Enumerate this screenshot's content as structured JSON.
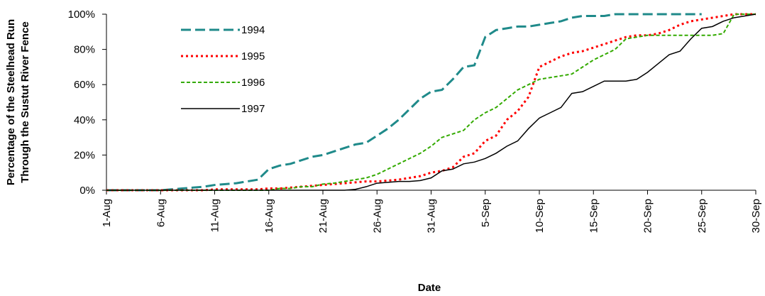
{
  "chart_data": {
    "type": "line",
    "x_label": "Date",
    "y_label": [
      "Percentage of the Steelhead Run",
      "Through the Sustut River Fence"
    ],
    "categories": [
      "1-Aug",
      null,
      null,
      null,
      null,
      "6-Aug",
      null,
      null,
      null,
      null,
      "11-Aug",
      null,
      null,
      null,
      null,
      "16-Aug",
      null,
      null,
      null,
      null,
      "21-Aug",
      null,
      null,
      null,
      null,
      "26-Aug",
      null,
      null,
      null,
      null,
      "31-Aug",
      null,
      null,
      null,
      null,
      "5-Sep",
      null,
      null,
      null,
      null,
      "10-Sep",
      null,
      null,
      null,
      null,
      "15-Sep",
      null,
      null,
      null,
      null,
      "20-Sep",
      null,
      null,
      null,
      null,
      "25-Sep",
      null,
      null,
      null,
      null,
      "30-Sep"
    ],
    "ylim": [
      0,
      100
    ],
    "yticks": [
      {
        "value": 0,
        "label": "0%"
      },
      {
        "value": 20,
        "label": "20%"
      },
      {
        "value": 40,
        "label": "40%"
      },
      {
        "value": 60,
        "label": "60%"
      },
      {
        "value": 80,
        "label": "80%"
      },
      {
        "value": 100,
        "label": "100%"
      }
    ],
    "legend": "upper-left",
    "series": [
      {
        "name": "1994",
        "color": "#1f8a8a",
        "line_style": "long-dash",
        "values": [
          0,
          0,
          0,
          0,
          0,
          0,
          0.5,
          1,
          1.5,
          2,
          3,
          3.5,
          4,
          5,
          6,
          12,
          14,
          15,
          17,
          19,
          20,
          22,
          24,
          26,
          27,
          31,
          35,
          40,
          46,
          52,
          56,
          57,
          63,
          70,
          71,
          87,
          91,
          92,
          93,
          93,
          94,
          95,
          96,
          98,
          99,
          99,
          99,
          100,
          100,
          100,
          100,
          100,
          100,
          100,
          100,
          100,
          null,
          null,
          null,
          null,
          null
        ]
      },
      {
        "name": "1995",
        "color": "#ff0000",
        "line_style": "dotted",
        "values": [
          0,
          0,
          0,
          0,
          0,
          0,
          0,
          0,
          0,
          0,
          0.5,
          0.5,
          0.5,
          0.5,
          0.5,
          1,
          1,
          1.5,
          2,
          2.5,
          3,
          3.5,
          4,
          4.5,
          5,
          5,
          5.5,
          6,
          7,
          8,
          10,
          11,
          13,
          19,
          21,
          28,
          31,
          40,
          45,
          53,
          70,
          73,
          76,
          78,
          79,
          81,
          83,
          85,
          87,
          88,
          88,
          89,
          91,
          94,
          96,
          97,
          98,
          99,
          100,
          100,
          100
        ]
      },
      {
        "name": "1996",
        "color": "#33aa00",
        "line_style": "dash",
        "values": [
          0,
          0,
          0,
          0,
          0,
          0,
          0,
          0,
          0,
          0,
          0,
          0,
          0,
          0,
          0,
          0,
          1,
          1,
          2,
          2,
          3.5,
          4,
          5,
          6,
          7,
          9,
          12,
          15,
          18,
          21,
          25,
          30,
          32,
          34,
          40,
          44,
          47,
          52,
          57,
          60,
          63,
          64,
          65,
          66,
          70,
          74,
          77,
          80,
          86,
          87,
          88,
          88,
          88,
          88,
          88,
          88,
          88,
          89,
          100,
          100,
          100
        ]
      },
      {
        "name": "1997",
        "color": "#000000",
        "line_style": "solid",
        "values": [
          0,
          0,
          0,
          0,
          0,
          0,
          0,
          0,
          0,
          0,
          0,
          0,
          0,
          0,
          0,
          0,
          0,
          0,
          0,
          0,
          0,
          0,
          0,
          0.5,
          2,
          4,
          4.5,
          5,
          5,
          5.5,
          7,
          11,
          12,
          15,
          16,
          18,
          21,
          25,
          28,
          35,
          41,
          44,
          47,
          55,
          56,
          59,
          62,
          62,
          62,
          63,
          67,
          72,
          77,
          79,
          86,
          92,
          93,
          96,
          98,
          99,
          100
        ]
      }
    ]
  }
}
